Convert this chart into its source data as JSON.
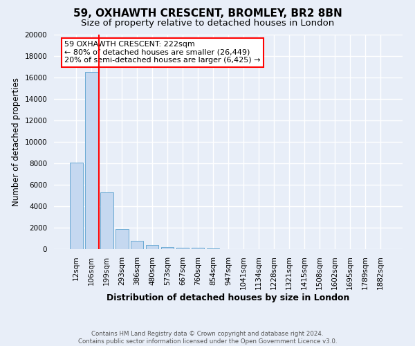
{
  "title_line1": "59, OXHAWTH CRESCENT, BROMLEY, BR2 8BN",
  "title_line2": "Size of property relative to detached houses in London",
  "xlabel": "Distribution of detached houses by size in London",
  "ylabel": "Number of detached properties",
  "bar_labels": [
    "12sqm",
    "106sqm",
    "199sqm",
    "293sqm",
    "386sqm",
    "480sqm",
    "573sqm",
    "667sqm",
    "760sqm",
    "854sqm",
    "947sqm",
    "1041sqm",
    "1134sqm",
    "1228sqm",
    "1321sqm",
    "1415sqm",
    "1508sqm",
    "1602sqm",
    "1695sqm",
    "1789sqm",
    "1882sqm"
  ],
  "bar_heights": [
    8050,
    16500,
    5300,
    1850,
    800,
    400,
    200,
    130,
    100,
    50,
    0,
    0,
    0,
    0,
    0,
    0,
    0,
    0,
    0,
    0,
    0
  ],
  "bar_color": "#c5d8f0",
  "bar_edgecolor": "#6aaad4",
  "red_line_x": 2,
  "annotation_text": "59 OXHAWTH CRESCENT: 222sqm\n← 80% of detached houses are smaller (26,449)\n20% of semi-detached houses are larger (6,425) →",
  "annotation_box_color": "white",
  "annotation_box_edgecolor": "red",
  "ylim": [
    0,
    20000
  ],
  "yticks": [
    0,
    2000,
    4000,
    6000,
    8000,
    10000,
    12000,
    14000,
    16000,
    18000,
    20000
  ],
  "footnote": "Contains HM Land Registry data © Crown copyright and database right 2024.\nContains public sector information licensed under the Open Government Licence v3.0.",
  "background_color": "#e8eef8",
  "plot_bg_color": "#e8eef8",
  "grid_color": "white",
  "title_fontsize": 11,
  "subtitle_fontsize": 9.5,
  "tick_fontsize": 7.5,
  "ylabel_fontsize": 8.5,
  "xlabel_fontsize": 9
}
